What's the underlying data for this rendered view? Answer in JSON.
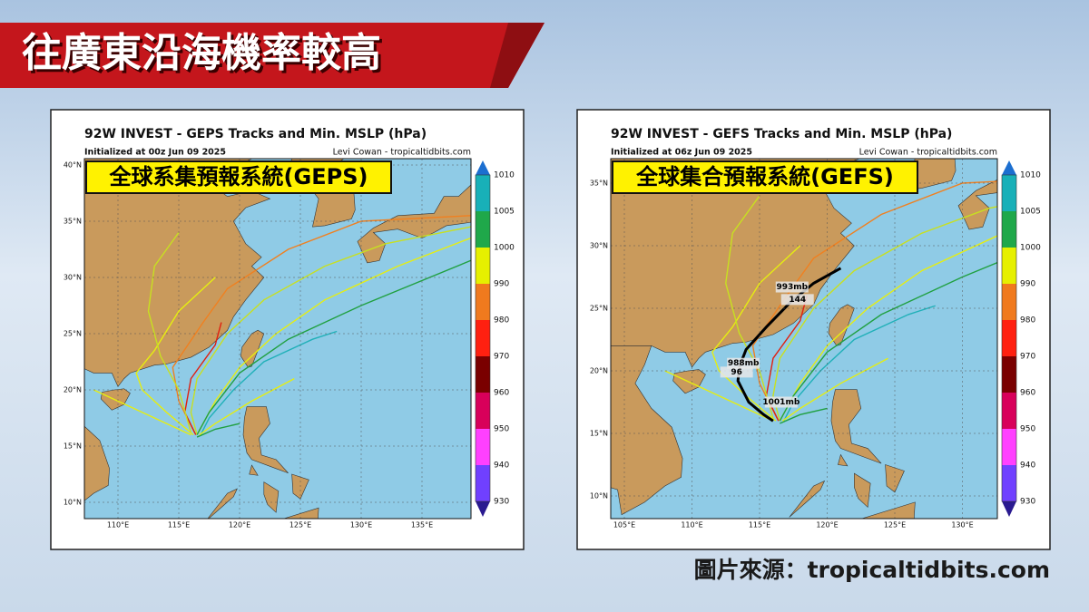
{
  "header": {
    "title": "往廣東沿海機率較高"
  },
  "panels": [
    {
      "title": "92W INVEST - GEPS Tracks and Min. MSLP (hPa)",
      "initialized": "Initialized at 00z Jun 09 2025",
      "credit": "Levi Cowan - tropicaltidbits.com",
      "label": "全球系集預報系統(GEPS)",
      "lat_labels": [
        "40°N",
        "35°N",
        "30°N",
        "25°N",
        "20°N",
        "15°N",
        "10°N"
      ],
      "lon_labels": [
        "110°E",
        "115°E",
        "120°E",
        "125°E",
        "130°E",
        "135°E"
      ],
      "colorbar_labels": [
        "1010",
        "1005",
        "1000",
        "990",
        "980",
        "970",
        "960",
        "950",
        "940",
        "930"
      ]
    },
    {
      "title": "92W INVEST - GEFS Tracks and Min. MSLP (hPa)",
      "initialized": "Initialized at 06z Jun 09 2025",
      "credit": "Levi Cowan - tropicaltidbits.com",
      "label": "全球集合預報系統(GEFS)",
      "lat_labels": [
        "35°N",
        "30°N",
        "25°N",
        "20°N",
        "15°N",
        "10°N"
      ],
      "lon_labels": [
        "105°E",
        "110°E",
        "115°E",
        "120°E",
        "125°E",
        "130°E"
      ],
      "colorbar_labels": [
        "1010",
        "1005",
        "1000",
        "990",
        "980",
        "970",
        "960",
        "950",
        "940",
        "930"
      ],
      "annotations": [
        "993mb",
        "144",
        "988mb",
        "96",
        "1001mb"
      ]
    }
  ],
  "footer": {
    "source": "圖片來源：tropicaltidbits.com"
  }
}
